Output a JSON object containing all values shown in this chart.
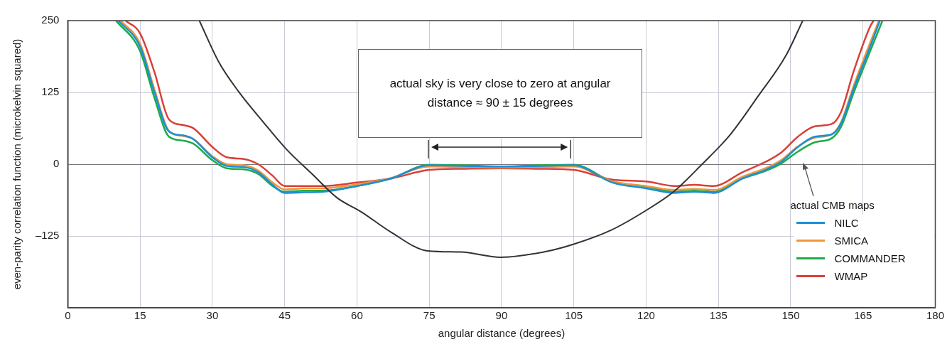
{
  "chart_data": {
    "type": "line",
    "xlabel": "angular distance (degrees)",
    "ylabel": "even-parity correlation function (microkelvin squared)",
    "legend_title": "actual CMB maps",
    "legend": "bottom right",
    "grid": true,
    "marker": "none",
    "line_style": "solid",
    "xlim": [
      0,
      180
    ],
    "xticks": [
      0,
      15,
      30,
      45,
      60,
      75,
      90,
      105,
      120,
      135,
      150,
      165,
      180
    ],
    "ylim": [
      -250,
      250
    ],
    "yticks": [
      {
        "value": -250,
        "label": null
      },
      {
        "value": -125,
        "label": "–125"
      },
      0,
      125,
      250
    ],
    "annotations": [
      "actual sky is very close to zero at angular distance ≈ 90 ± 15 degrees"
    ],
    "series": [
      {
        "color": "#333333",
        "x": [
          27.3,
          31.4,
          35.4,
          40.6,
          45.6,
          50.7,
          55.8,
          60.9,
          67,
          74.7,
          81.6,
          89.8,
          99.3,
          105.1,
          112.7,
          119.7,
          125.7,
          131.5,
          137.4,
          143.2,
          149,
          152.5
        ],
        "values": [
          250,
          177,
          127,
          73,
          24,
          -17,
          -58,
          -83,
          -118,
          -151,
          -153,
          -162,
          -152,
          -139,
          -115,
          -82,
          -48,
          -1,
          51,
          118,
          189,
          250
        ]
      },
      {
        "name": "NILC",
        "color": "#1a8fd8",
        "x": [
          10.5,
          15,
          18,
          21,
          24,
          26,
          30,
          33,
          36.5,
          39.5,
          42.5,
          45,
          49,
          53,
          60,
          67,
          75,
          82,
          90,
          98,
          105,
          113,
          120,
          126,
          130,
          134,
          140,
          145,
          148,
          151.5,
          155,
          158.5,
          160.5,
          163,
          166.5,
          168.5
        ],
        "values": [
          250,
          205,
          125,
          57,
          50,
          44,
          12,
          -3,
          -5,
          -14,
          -36,
          -50,
          -49,
          -48,
          -38,
          -25,
          -2,
          -3,
          -4,
          -3,
          -2,
          -32,
          -42,
          -50,
          -48,
          -50,
          -25,
          -9,
          4,
          30,
          48,
          52,
          72,
          130,
          205,
          250
        ]
      },
      {
        "name": "SMICA",
        "color": "#f2953a",
        "x": [
          11,
          15,
          18,
          21,
          24,
          26,
          30,
          33,
          36.5,
          39.5,
          42.5,
          45,
          49,
          53,
          60,
          67,
          75,
          82,
          90,
          98,
          105,
          113,
          120,
          126,
          130,
          134,
          140,
          145,
          148,
          151.5,
          155,
          158.5,
          160.5,
          163,
          166.5,
          168.3
        ],
        "values": [
          250,
          210,
          130,
          58,
          49,
          44,
          14,
          0,
          -2,
          -11,
          -32,
          -44,
          -42,
          -42,
          -35,
          -24,
          -4,
          -5,
          -6,
          -5,
          -4,
          -30,
          -38,
          -45,
          -43,
          -45,
          -22,
          -6,
          7,
          31,
          46,
          52,
          74,
          135,
          212,
          250
        ]
      },
      {
        "name": "COMMANDER",
        "color": "#1faa4a",
        "x": [
          10,
          15,
          18,
          21,
          24,
          26,
          30,
          33,
          36.5,
          39.5,
          42.5,
          45,
          49,
          53,
          60,
          67,
          75,
          82,
          90,
          98,
          105,
          113,
          120,
          126,
          130,
          134,
          140,
          145,
          148,
          151.5,
          155,
          158.5,
          160.5,
          163,
          166.5,
          169
        ],
        "values": [
          250,
          197,
          115,
          48,
          41,
          36,
          7,
          -7,
          -9,
          -17,
          -38,
          -48,
          -46,
          -46,
          -38,
          -25,
          -1,
          -2,
          -4,
          -2,
          -1,
          -30,
          -39,
          -48,
          -46,
          -48,
          -25,
          -11,
          1,
          22,
          38,
          45,
          66,
          123,
          197,
          249
        ]
      },
      {
        "name": "WMAP",
        "color": "#d8403a",
        "x": [
          12,
          15,
          18,
          21,
          24,
          26,
          30,
          33,
          36.5,
          39.5,
          42.5,
          45,
          49,
          53,
          60,
          67,
          75,
          82,
          90,
          98,
          105,
          113,
          120,
          126,
          130,
          134,
          140,
          145,
          148,
          151.5,
          155,
          158.5,
          160.5,
          163,
          166.5,
          167.2
        ],
        "values": [
          250,
          228,
          160,
          78,
          68,
          63,
          30,
          12,
          9,
          0,
          -20,
          -38,
          -38,
          -38,
          -32,
          -25,
          -10,
          -8,
          -7,
          -8,
          -10,
          -27,
          -30,
          -38,
          -36,
          -38,
          -14,
          5,
          20,
          48,
          66,
          70,
          92,
          160,
          240,
          250
        ]
      }
    ]
  }
}
